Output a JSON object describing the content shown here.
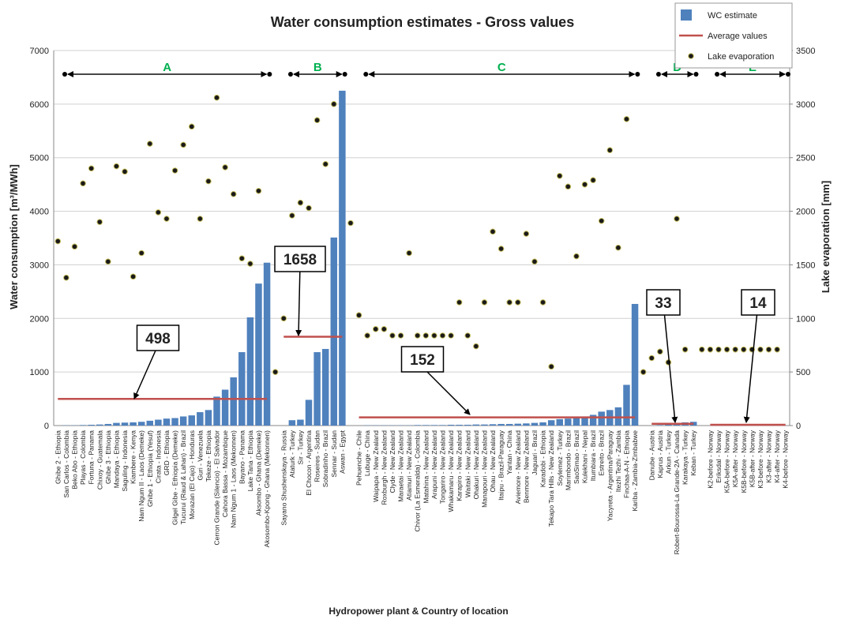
{
  "chart_data": {
    "type": "bar",
    "title": "Water consumption estimates - Gross values",
    "x_label": "Hydropower plant & Country of location",
    "y_label": "Water consumption [m³/MWh]",
    "y2_label": "Lake evaporation [mm]",
    "ylim": [
      0,
      7000
    ],
    "yticks": [
      0,
      1000,
      2000,
      3000,
      4000,
      5000,
      6000,
      7000
    ],
    "y2lim": [
      0,
      3500
    ],
    "y2ticks": [
      0,
      500,
      1000,
      1500,
      2000,
      2500,
      3000,
      3500
    ],
    "grid": true,
    "legend": "top-right",
    "groups": [
      {
        "name": "A"
      },
      {
        "name": "B"
      },
      {
        "name": "C"
      },
      {
        "name": "D"
      },
      {
        "name": "E"
      }
    ],
    "categories": [
      "Ghibe 2 - Ethiopia",
      "San Carlos - Colombia",
      "Beko Abo - Ethiopia",
      "Playas - Colombia",
      "Fortuna - Panama",
      "Chixoy - Guatemala",
      "Ghibe 3 - Ethiopia",
      "Mandaya - Ethiopia",
      "Saguling - Indonesia",
      "Kiambere - Kenya",
      "Nam Ngum II - Laos (Demeke)",
      "Ghibe 1 - Ethiopia (Yesuf)",
      "Cirata - Indonesia",
      "GRD - Ethiopia",
      "Gilgel Gibe - Ethiopia (Demeke)",
      "Tucurui (Raud & Lahan) - Brazil",
      "Morazan (El Cajo) - Honduras",
      "Guri - Venezuela",
      "Tekeze - Ethiopia",
      "Cerron Grande (Silencio) - El Salvador",
      "Cahora Bassa - Mozambique",
      "Nam Ngum 1 - Laos (Mekonnen)",
      "Bayano - Panama",
      "Lake Tana - Ethiopia",
      "Aksombo - Ghana (Demeke)",
      "Akosombo-Kpong - Ghana (Mekonnen)",
      null,
      "Sayano Shushenskaya - Russia",
      "Ataturk - Turkey",
      "Sir - Turkey",
      "El Chocon - Argentina",
      "Roseires - Sudan",
      "Sobradinho - Brazil",
      "Sennar - Sudan",
      "Aswan - Egypt",
      null,
      "Pehuenche - Chile",
      "Lubuge - China",
      "Waipapa - New Zealand",
      "Roxburgh - New Zealand",
      "Clyde - New Zealand",
      "Maraetai - New Zealand",
      "Atiamuri - New Zealand",
      "Chivor (La Esmeralda) - Colombia",
      "Matahina - New Zealand",
      "Arapuni - New Zealand",
      "Tongariro - New Zealand",
      "Whakamaru - New Zealand",
      "Karapiro - New Zealand",
      "Waitaki - New Zealand",
      "Ohakuri - New Zealand",
      "Manapouri - New Zealand",
      "Ohau - New Zealand",
      "Itaipu - Brazil-Paraguay",
      "Yantan - China",
      "Aviemore - New Zealand",
      "Benmore - New Zealand",
      "Jaguari - Brazil",
      "Karadobi - Ethiopia",
      "Tekapo Tara Hills - New Zealand",
      "Soylemez - Turkey",
      "Marimbondo - Brazil",
      "SaoSimao - Brazil",
      "Kulekhani - Nepal",
      "Itumbiara - Brazil",
      "Estreito - Brazil",
      "Yacyreta - Argentina/Paraguay",
      "Itezhi Tezhi - Zambia",
      "Finchaa-A-N - Ethiopia",
      "Kariba - Zambia-Zimbabwe",
      null,
      "Danube - Austria",
      "Kaprus - Austria",
      "Arkun - Turkey",
      "Robert-Bourossa-La Grande-2A - Canada",
      "Karakaya - Turkey",
      "Keban - Turkey",
      null,
      "K2-before - Norway",
      "Eriksdal - Norway",
      "K5A-before - Norway",
      "K5A-after - Norway",
      "K5B-before - Norway",
      "K5B-after - Norway",
      "K3-before - Norway",
      "K3-after - Norway",
      "K4-after - Norway",
      "K4-before - Norway"
    ],
    "series": [
      {
        "name": "WC estimate",
        "type": "bar",
        "color": "#4f81bd",
        "values": [
          0,
          5,
          5,
          10,
          15,
          20,
          30,
          50,
          55,
          60,
          70,
          90,
          110,
          130,
          140,
          170,
          190,
          250,
          290,
          540,
          670,
          900,
          1370,
          2020,
          2650,
          3040,
          null,
          0,
          100,
          110,
          480,
          1370,
          1430,
          3510,
          6250,
          null,
          0,
          5,
          5,
          5,
          5,
          5,
          5,
          10,
          10,
          10,
          10,
          15,
          15,
          15,
          20,
          20,
          25,
          30,
          30,
          35,
          40,
          50,
          60,
          100,
          120,
          130,
          150,
          170,
          200,
          260,
          290,
          340,
          760,
          2270,
          null,
          0,
          10,
          20,
          30,
          60,
          70,
          null,
          0,
          0,
          0,
          0,
          0,
          0,
          0,
          0,
          0,
          0
        ]
      },
      {
        "name": "Average values",
        "type": "line",
        "color": "#c0504d",
        "values": [
          498,
          498,
          498,
          498,
          498,
          498,
          498,
          498,
          498,
          498,
          498,
          498,
          498,
          498,
          498,
          498,
          498,
          498,
          498,
          498,
          498,
          498,
          498,
          498,
          498,
          498,
          null,
          1658,
          1658,
          1658,
          1658,
          1658,
          1658,
          1658,
          1658,
          null,
          152,
          152,
          152,
          152,
          152,
          152,
          152,
          152,
          152,
          152,
          152,
          152,
          152,
          152,
          152,
          152,
          152,
          152,
          152,
          152,
          152,
          152,
          152,
          152,
          152,
          152,
          152,
          152,
          152,
          152,
          152,
          152,
          152,
          152,
          null,
          33,
          33,
          33,
          33,
          33,
          33,
          null,
          14,
          14,
          14,
          14,
          14,
          14,
          14,
          14,
          14,
          14
        ]
      },
      {
        "name": "Lake evaporation",
        "type": "scatter",
        "axis": "y2",
        "color": "#1a1a1a",
        "values": [
          1720,
          1380,
          1670,
          2260,
          2400,
          1900,
          1530,
          2420,
          2370,
          1390,
          1610,
          2630,
          1990,
          1930,
          2380,
          2620,
          2790,
          1930,
          2280,
          3060,
          2410,
          2160,
          1560,
          1510,
          2190,
          null,
          500,
          1000,
          1960,
          2080,
          2030,
          2850,
          2440,
          3000,
          null,
          1890,
          1030,
          840,
          900,
          900,
          840,
          840,
          1610,
          840,
          840,
          840,
          840,
          840,
          1150,
          840,
          740,
          1150,
          1810,
          1650,
          1150,
          1150,
          1790,
          1530,
          1150,
          550,
          2330,
          2230,
          1580,
          2250,
          2290,
          1910,
          2570,
          1660,
          2860,
          null,
          500,
          630,
          690,
          590,
          1930,
          710,
          null,
          710,
          710,
          710,
          710,
          710,
          710,
          710,
          710,
          710,
          710,
          null
        ]
      }
    ]
  }
}
